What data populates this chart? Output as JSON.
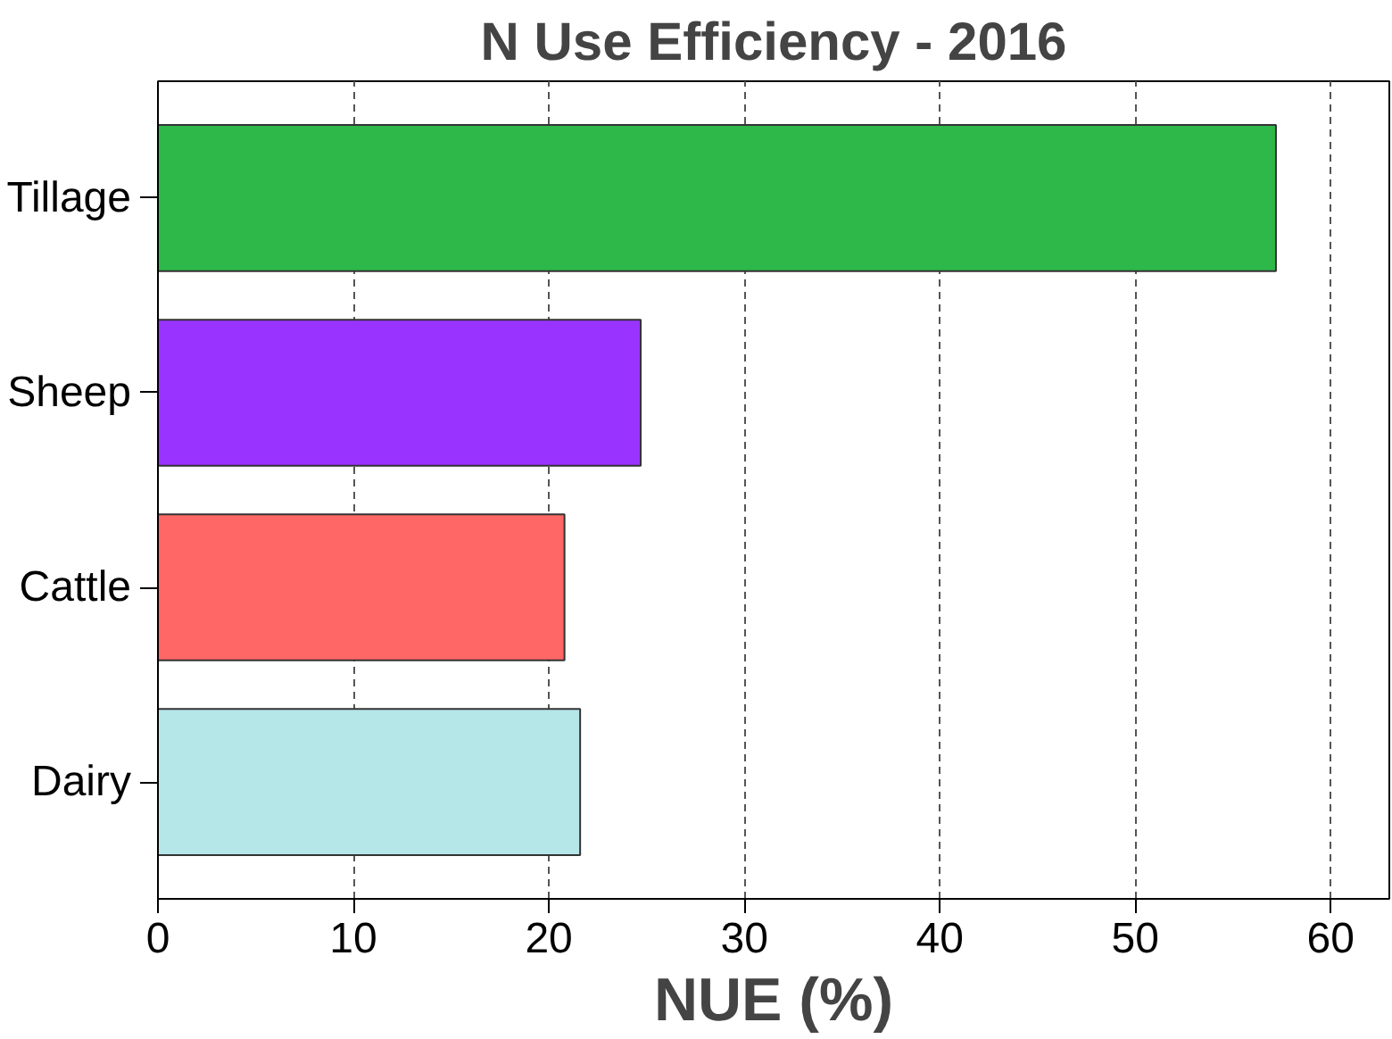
{
  "chart_data": {
    "type": "bar",
    "orientation": "horizontal",
    "title": "N Use Efficiency - 2016",
    "xlabel": "NUE (%)",
    "categories": [
      "Tillage",
      "Sheep",
      "Cattle",
      "Dairy"
    ],
    "values": [
      57.2,
      24.7,
      20.8,
      21.6
    ],
    "colors": [
      "#2eb84a",
      "#9933ff",
      "#ff6666",
      "#b5e6e8"
    ],
    "xlim": [
      0,
      63
    ],
    "xticks": [
      0,
      10,
      20,
      30,
      40,
      50,
      60
    ],
    "grid": "x"
  }
}
